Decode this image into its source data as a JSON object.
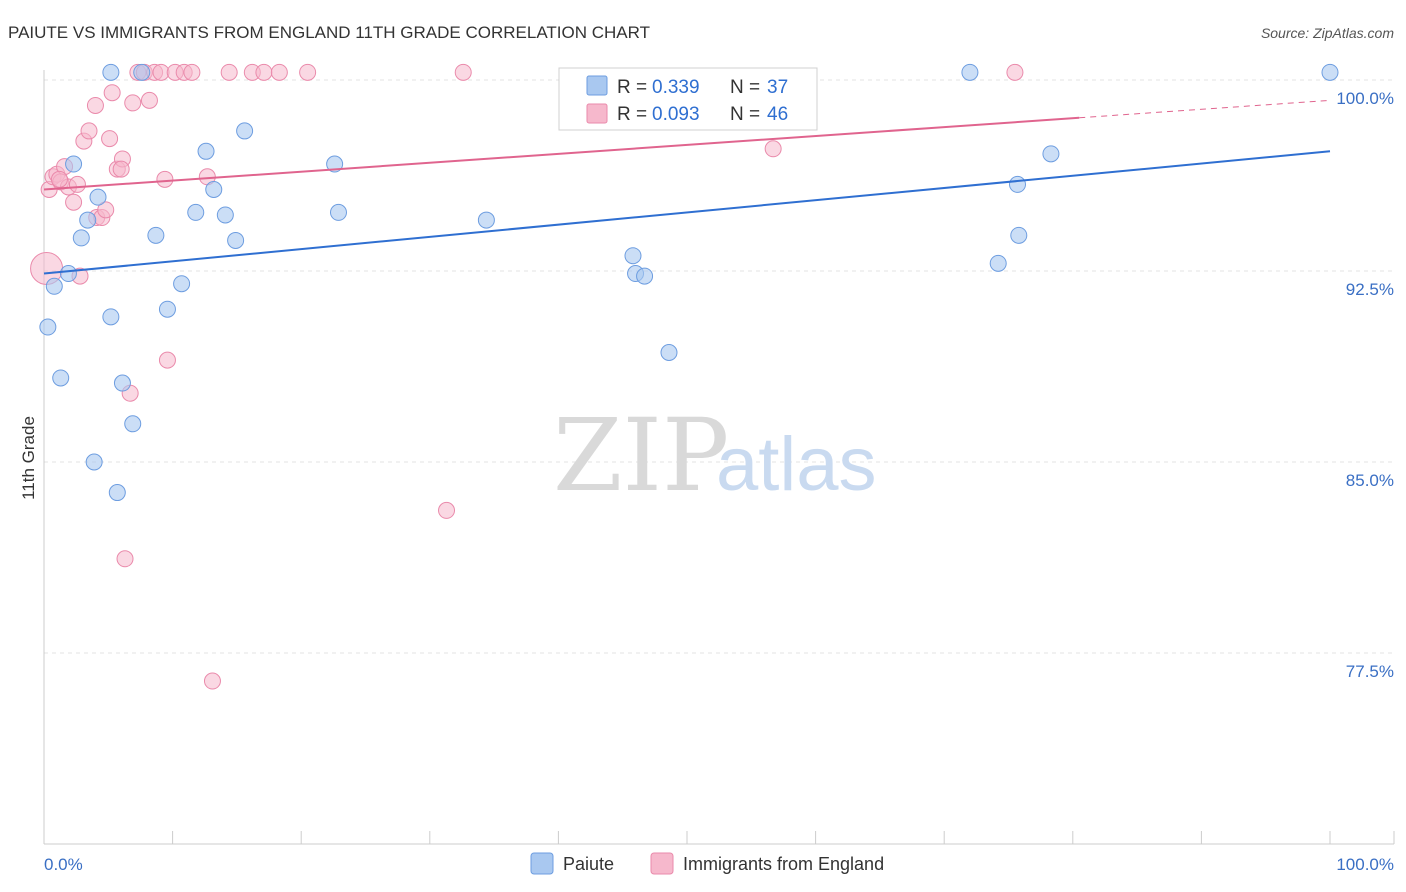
{
  "title": "PAIUTE VS IMMIGRANTS FROM ENGLAND 11TH GRADE CORRELATION CHART",
  "source": "Source: ZipAtlas.com",
  "watermark": {
    "zip": "ZIP",
    "atlas": "atlas"
  },
  "legend": {
    "rows": [
      {
        "r_label": "R =",
        "r_value": "0.339",
        "n_label": "N =",
        "n_value": "37"
      },
      {
        "r_label": "R =",
        "r_value": "0.093",
        "n_label": "N =",
        "n_value": "46"
      }
    ]
  },
  "bottom_legend": [
    {
      "label": "Paiute"
    },
    {
      "label": "Immigrants from England"
    }
  ],
  "colors": {
    "paiute_fill": "#a9c8f0",
    "paiute_stroke": "#6d9de0",
    "paiute_line": "#2f6fd1",
    "england_fill": "#f6b8cc",
    "england_stroke": "#ea8aab",
    "england_line": "#e0648e",
    "grid": "#e3e3e3",
    "axis_text": "#3a6fc4"
  },
  "chart_data": {
    "type": "scatter",
    "title": "PAIUTE VS IMMIGRANTS FROM ENGLAND 11TH GRADE CORRELATION CHART",
    "xlabel": "",
    "ylabel": "11th Grade",
    "xlim": [
      0,
      100
    ],
    "ylim": [
      70.0,
      100.3
    ],
    "x_tick_labels": [
      "0.0%",
      "100.0%"
    ],
    "y_ticks": [
      {
        "value": 100.0,
        "label": "100.0%"
      },
      {
        "value": 92.5,
        "label": "92.5%"
      },
      {
        "value": 85.0,
        "label": "85.0%"
      },
      {
        "value": 77.5,
        "label": "77.5%"
      }
    ],
    "series": [
      {
        "name": "Paiute",
        "R": 0.339,
        "N": 37,
        "trend": {
          "x": [
            0,
            100
          ],
          "y": [
            92.4,
            97.2
          ],
          "dashed_from": null
        },
        "points": [
          [
            0.3,
            90.3
          ],
          [
            0.8,
            91.9
          ],
          [
            1.3,
            88.3
          ],
          [
            1.9,
            92.4
          ],
          [
            2.3,
            96.7
          ],
          [
            2.9,
            93.8
          ],
          [
            3.4,
            94.5
          ],
          [
            3.9,
            85.0
          ],
          [
            4.2,
            95.4
          ],
          [
            5.2,
            90.7
          ],
          [
            5.7,
            83.8
          ],
          [
            6.1,
            88.1
          ],
          [
            6.9,
            86.5
          ],
          [
            5.2,
            100.3
          ],
          [
            7.6,
            100.3
          ],
          [
            8.7,
            93.9
          ],
          [
            9.6,
            91.0
          ],
          [
            10.7,
            92.0
          ],
          [
            11.8,
            94.8
          ],
          [
            12.6,
            97.2
          ],
          [
            13.2,
            95.7
          ],
          [
            14.1,
            94.7
          ],
          [
            14.9,
            93.7
          ],
          [
            15.6,
            98.0
          ],
          [
            22.6,
            96.7
          ],
          [
            22.9,
            94.8
          ],
          [
            34.4,
            94.5
          ],
          [
            45.8,
            93.1
          ],
          [
            46.0,
            92.4
          ],
          [
            46.7,
            92.3
          ],
          [
            48.6,
            89.3
          ],
          [
            72.0,
            100.3
          ],
          [
            74.2,
            92.8
          ],
          [
            75.7,
            95.9
          ],
          [
            75.8,
            93.9
          ],
          [
            78.3,
            97.1
          ],
          [
            100.0,
            100.3
          ]
        ]
      },
      {
        "name": "Immigrants from England",
        "R": 0.093,
        "N": 46,
        "trend": {
          "x": [
            0,
            100
          ],
          "y": [
            95.7,
            99.2
          ],
          "dashed_from": 80.5
        },
        "points": [
          [
            0.2,
            92.6
          ],
          [
            0.4,
            95.7
          ],
          [
            0.7,
            96.2
          ],
          [
            1.0,
            96.3
          ],
          [
            1.3,
            96.0
          ],
          [
            1.6,
            96.6
          ],
          [
            1.9,
            95.8
          ],
          [
            2.3,
            95.2
          ],
          [
            2.6,
            95.9
          ],
          [
            2.8,
            92.3
          ],
          [
            3.1,
            97.6
          ],
          [
            3.5,
            98.0
          ],
          [
            4.0,
            99.0
          ],
          [
            4.1,
            94.6
          ],
          [
            4.5,
            94.6
          ],
          [
            4.8,
            94.9
          ],
          [
            5.1,
            97.7
          ],
          [
            5.3,
            99.5
          ],
          [
            5.7,
            96.5
          ],
          [
            6.1,
            96.9
          ],
          [
            6.3,
            81.2
          ],
          [
            6.7,
            87.7
          ],
          [
            6.9,
            99.1
          ],
          [
            7.3,
            100.3
          ],
          [
            7.8,
            100.3
          ],
          [
            8.2,
            99.2
          ],
          [
            8.6,
            100.3
          ],
          [
            9.1,
            100.3
          ],
          [
            9.4,
            96.1
          ],
          [
            9.6,
            89.0
          ],
          [
            10.2,
            100.3
          ],
          [
            10.9,
            100.3
          ],
          [
            11.5,
            100.3
          ],
          [
            12.7,
            96.2
          ],
          [
            13.1,
            76.4
          ],
          [
            14.4,
            100.3
          ],
          [
            16.2,
            100.3
          ],
          [
            17.1,
            100.3
          ],
          [
            18.3,
            100.3
          ],
          [
            20.5,
            100.3
          ],
          [
            31.3,
            83.1
          ],
          [
            32.6,
            100.3
          ],
          [
            56.7,
            97.3
          ],
          [
            75.5,
            100.3
          ],
          [
            1.2,
            96.1
          ],
          [
            6.0,
            96.5
          ]
        ]
      }
    ]
  }
}
